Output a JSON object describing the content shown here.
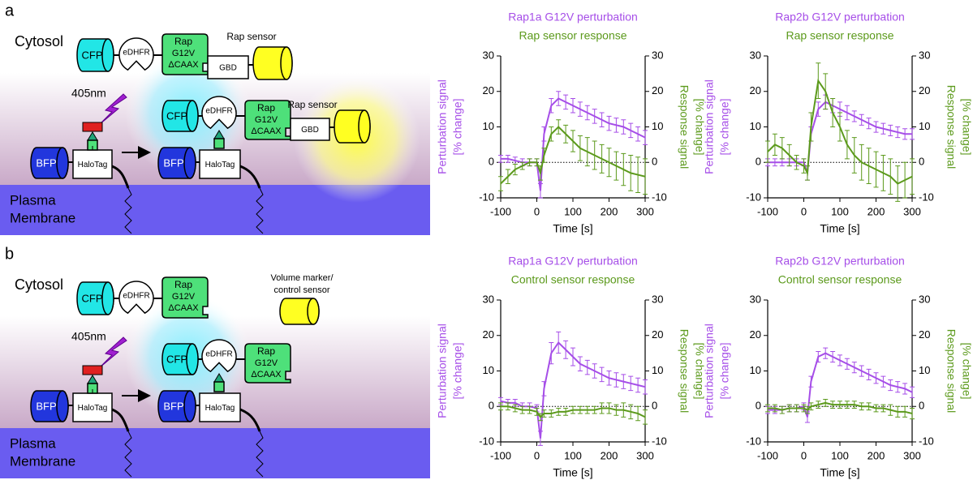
{
  "diagrams": [
    {
      "panel": "a",
      "cytosol": "Cytosol",
      "membrane": [
        "Plasma",
        "Membrane"
      ],
      "light": "405nm",
      "cfp": "CFP",
      "edhfr": "eDHFR",
      "rap": [
        "Rap",
        "G12V",
        "ΔCAAX"
      ],
      "gbd": "GBD",
      "sensor": [
        "Rap sensor"
      ],
      "bfp": "BFP",
      "halotag": "HaloTag"
    },
    {
      "panel": "b",
      "cytosol": "Cytosol",
      "membrane": [
        "Plasma",
        "Membrane"
      ],
      "light": "405nm",
      "cfp": "CFP",
      "edhfr": "eDHFR",
      "rap": [
        "Rap",
        "G12V",
        "ΔCAAX"
      ],
      "sensor": [
        "Volume marker/",
        "control sensor"
      ],
      "bfp": "BFP",
      "halotag": "HaloTag"
    }
  ],
  "chart_data": [
    {
      "type": "line",
      "x": [
        -100,
        -80,
        -60,
        -40,
        -20,
        0,
        10,
        20,
        40,
        60,
        80,
        100,
        120,
        140,
        160,
        180,
        200,
        220,
        240,
        260,
        280,
        300
      ],
      "xlim": [
        -100,
        300
      ],
      "xticks": [
        -100,
        0,
        100,
        200,
        300
      ],
      "ylim": [
        -10,
        30
      ],
      "yticks": [
        -10,
        0,
        10,
        20,
        30
      ],
      "y2lim": [
        -10,
        30
      ],
      "y2ticks": [
        -10,
        0,
        10,
        20,
        30
      ],
      "xlabel": "Time [s]",
      "ylabel": [
        "Perturbation signal",
        "[% change]"
      ],
      "y2label": [
        "Response signal",
        "[% change]"
      ],
      "hline": 0,
      "series": [
        {
          "name": "Rap1a G12V perturbation",
          "color": "#a64ee8",
          "values": [
            1,
            1,
            0.5,
            0,
            0,
            0,
            -8,
            8,
            16,
            18,
            17,
            16,
            15,
            14,
            13,
            12,
            11,
            10.5,
            10,
            9,
            8,
            7
          ],
          "errors": [
            1,
            1,
            1,
            1,
            1,
            1,
            2,
            2,
            2,
            2,
            2,
            2,
            2,
            2,
            2,
            2,
            2,
            2,
            2,
            2,
            2,
            2
          ]
        },
        {
          "name": "Rap sensor response",
          "color": "#5c9a1c",
          "axis": "y2",
          "values": [
            -6,
            -4,
            -2,
            -1,
            0,
            0,
            -3,
            2,
            8,
            10,
            8,
            6,
            4,
            3,
            2,
            1,
            0,
            -1,
            -2,
            -3,
            -3.5,
            -4
          ],
          "errors": [
            2,
            2,
            1.5,
            1,
            1,
            1,
            2,
            2,
            2,
            2,
            2.5,
            3,
            3.5,
            4,
            4,
            4,
            4,
            4,
            4.5,
            5,
            5,
            5
          ]
        }
      ]
    },
    {
      "type": "line",
      "x": [
        -100,
        -80,
        -60,
        -40,
        -20,
        0,
        10,
        20,
        40,
        60,
        80,
        100,
        120,
        140,
        160,
        180,
        200,
        220,
        240,
        260,
        280,
        300
      ],
      "xlim": [
        -100,
        300
      ],
      "xticks": [
        -100,
        0,
        100,
        200,
        300
      ],
      "ylim": [
        -10,
        30
      ],
      "yticks": [
        -10,
        0,
        10,
        20,
        30
      ],
      "y2lim": [
        -10,
        30
      ],
      "y2ticks": [
        -10,
        0,
        10,
        20,
        30
      ],
      "xlabel": "Time [s]",
      "ylabel": [
        "Perturbation signal",
        "[% change]"
      ],
      "y2label": [
        "Response signal",
        "[% change]"
      ],
      "hline": 0,
      "series": [
        {
          "name": "Rap2b G12V perturbation",
          "color": "#a64ee8",
          "values": [
            0,
            0,
            0,
            0,
            0,
            0,
            -3,
            8,
            15,
            17,
            16,
            15,
            14,
            13,
            12,
            11,
            10,
            9.5,
            9,
            8.5,
            8,
            8
          ],
          "errors": [
            1,
            1,
            1,
            1,
            1,
            1,
            2,
            2,
            2,
            2,
            2,
            2,
            2,
            1.5,
            1.5,
            1.5,
            1.5,
            1.5,
            1.5,
            1.5,
            1.5,
            1.5
          ]
        },
        {
          "name": "Rap sensor response",
          "color": "#5c9a1c",
          "axis": "y2",
          "values": [
            3,
            5,
            4,
            2,
            0,
            -1,
            -3,
            10,
            23,
            20,
            14,
            10,
            5,
            2,
            0,
            -1,
            -2,
            -3,
            -4,
            -6,
            -5,
            -4
          ],
          "errors": [
            3,
            3,
            3,
            3,
            2,
            2,
            2,
            4,
            5,
            5,
            4,
            4,
            4,
            5,
            5,
            5,
            5,
            5,
            5,
            5,
            5,
            5
          ]
        }
      ]
    },
    {
      "type": "line",
      "x": [
        -100,
        -80,
        -60,
        -40,
        -20,
        0,
        10,
        20,
        40,
        60,
        80,
        100,
        120,
        140,
        160,
        180,
        200,
        220,
        240,
        260,
        280,
        300
      ],
      "xlim": [
        -100,
        300
      ],
      "xticks": [
        -100,
        0,
        100,
        200,
        300
      ],
      "ylim": [
        -10,
        30
      ],
      "yticks": [
        -10,
        0,
        10,
        20,
        30
      ],
      "y2lim": [
        -10,
        30
      ],
      "y2ticks": [
        -10,
        0,
        10,
        20,
        30
      ],
      "xlabel": "Time [s]",
      "ylabel": [
        "Perturbation signal",
        "[% change]"
      ],
      "y2label": [
        "Response signal",
        "[% change]"
      ],
      "hline": 0,
      "series": [
        {
          "name": "Rap1a G12V perturbation",
          "color": "#a64ee8",
          "values": [
            1.5,
            1,
            1,
            0,
            0,
            -0.5,
            -9,
            5,
            15,
            18,
            16,
            14,
            12,
            11,
            10,
            9,
            8,
            7.5,
            7,
            6.5,
            6,
            5.5
          ],
          "errors": [
            1,
            1,
            1,
            1,
            1,
            1,
            2,
            2,
            3,
            3,
            2.5,
            2.5,
            2,
            2,
            2,
            2,
            2,
            2,
            2,
            2,
            2,
            2
          ]
        },
        {
          "name": "Control sensor response",
          "color": "#5c9a1c",
          "axis": "y2",
          "values": [
            0,
            0,
            -0.5,
            -1,
            -1,
            -1.5,
            -3,
            -2,
            -2,
            -1.5,
            -1.5,
            -1,
            -1,
            -1,
            -1,
            -0.5,
            -0.5,
            -1,
            -1,
            -1.5,
            -2,
            -3
          ],
          "errors": [
            1,
            1,
            1,
            1,
            1,
            1,
            1,
            1,
            1,
            1,
            1,
            1,
            1,
            1,
            1,
            1.5,
            1.5,
            1.5,
            2,
            2,
            2,
            2
          ]
        }
      ]
    },
    {
      "type": "line",
      "x": [
        -100,
        -80,
        -60,
        -40,
        -20,
        0,
        10,
        20,
        40,
        60,
        80,
        100,
        120,
        140,
        160,
        180,
        200,
        220,
        240,
        260,
        280,
        300
      ],
      "xlim": [
        -100,
        300
      ],
      "xticks": [
        -100,
        0,
        100,
        200,
        300
      ],
      "ylim": [
        -10,
        30
      ],
      "yticks": [
        -10,
        0,
        10,
        20,
        30
      ],
      "y2lim": [
        -10,
        30
      ],
      "y2ticks": [
        -10,
        0,
        10,
        20,
        30
      ],
      "xlabel": "Time [s]",
      "ylabel": [
        "Perturbation signal",
        "[% change]"
      ],
      "y2label": [
        "Response signal",
        "[% change]"
      ],
      "hline": 0,
      "series": [
        {
          "name": "Rap2b G12V perturbation",
          "color": "#a64ee8",
          "values": [
            -1,
            -1,
            -1,
            -0.5,
            -0.5,
            0,
            -3,
            7,
            14,
            15,
            14,
            13,
            12,
            11,
            10,
            9,
            8,
            7,
            6,
            5.5,
            5,
            4
          ],
          "errors": [
            1,
            1,
            1,
            1,
            1,
            1,
            1.5,
            1.5,
            1.5,
            1.5,
            1.5,
            1.5,
            1.5,
            1.5,
            1.5,
            1.5,
            1.5,
            1.5,
            1.5,
            1.5,
            1.5,
            1.5
          ]
        },
        {
          "name": "Control sensor response",
          "color": "#5c9a1c",
          "axis": "y2",
          "values": [
            -0.5,
            -0.5,
            -1,
            -0.5,
            -0.5,
            -0.5,
            -1,
            0,
            0.5,
            1,
            0.5,
            0.5,
            0.5,
            0.5,
            0,
            0,
            -0.5,
            -0.5,
            -1,
            -1.5,
            -1.5,
            -2
          ],
          "errors": [
            1,
            1,
            1,
            1,
            1,
            1,
            1,
            1,
            1,
            1,
            1,
            1,
            1,
            1,
            1,
            1,
            1,
            1,
            1.5,
            1.5,
            1.5,
            1.5
          ]
        }
      ]
    }
  ]
}
